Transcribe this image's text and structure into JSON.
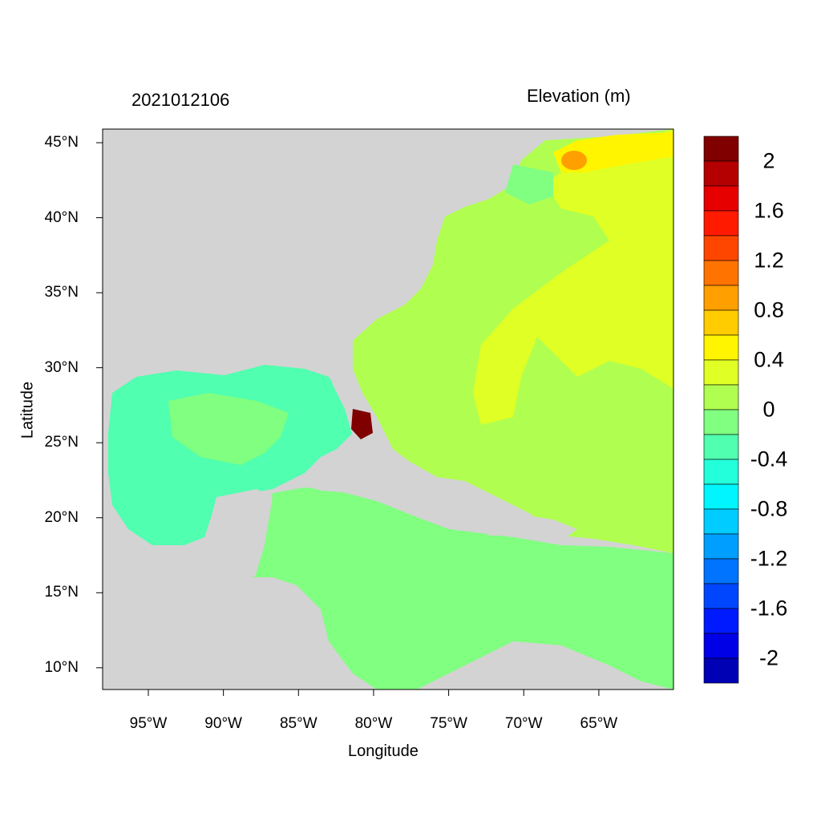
{
  "date_label": "2021012106",
  "colorbar_title": "Elevation (m)",
  "x_axis_label": "Longitude",
  "y_axis_label": "Latitude",
  "x_ticks": [
    {
      "lon": -95,
      "label": "95°W"
    },
    {
      "lon": -90,
      "label": "90°W"
    },
    {
      "lon": -85,
      "label": "85°W"
    },
    {
      "lon": -80,
      "label": "80°W"
    },
    {
      "lon": -75,
      "label": "75°W"
    },
    {
      "lon": -70,
      "label": "70°W"
    },
    {
      "lon": -65,
      "label": "65°W"
    }
  ],
  "y_ticks": [
    {
      "lat": 45,
      "label": "45°N"
    },
    {
      "lat": 40,
      "label": "40°N"
    },
    {
      "lat": 35,
      "label": "35°N"
    },
    {
      "lat": 30,
      "label": "30°N"
    },
    {
      "lat": 25,
      "label": "25°N"
    },
    {
      "lat": 20,
      "label": "20°N"
    },
    {
      "lat": 15,
      "label": "15°N"
    },
    {
      "lat": 10,
      "label": "10°N"
    }
  ],
  "colorbar": {
    "labels": [
      "2",
      "1.6",
      "1.2",
      "0.8",
      "0.4",
      "0",
      "-0.4",
      "-0.8",
      "-1.2",
      "-1.6",
      "-2"
    ],
    "colors": [
      "#800000",
      "#b40000",
      "#e60000",
      "#ff1a00",
      "#ff4600",
      "#ff7300",
      "#ff9f00",
      "#ffcc00",
      "#fff500",
      "#e0ff24",
      "#b0ff50",
      "#80ff80",
      "#50ffaf",
      "#24ffdb",
      "#00f5ff",
      "#00ccff",
      "#009fff",
      "#0073ff",
      "#0046ff",
      "#001aff",
      "#0000e6",
      "#0000b4"
    ]
  },
  "land_color": "#d3d3d3"
}
